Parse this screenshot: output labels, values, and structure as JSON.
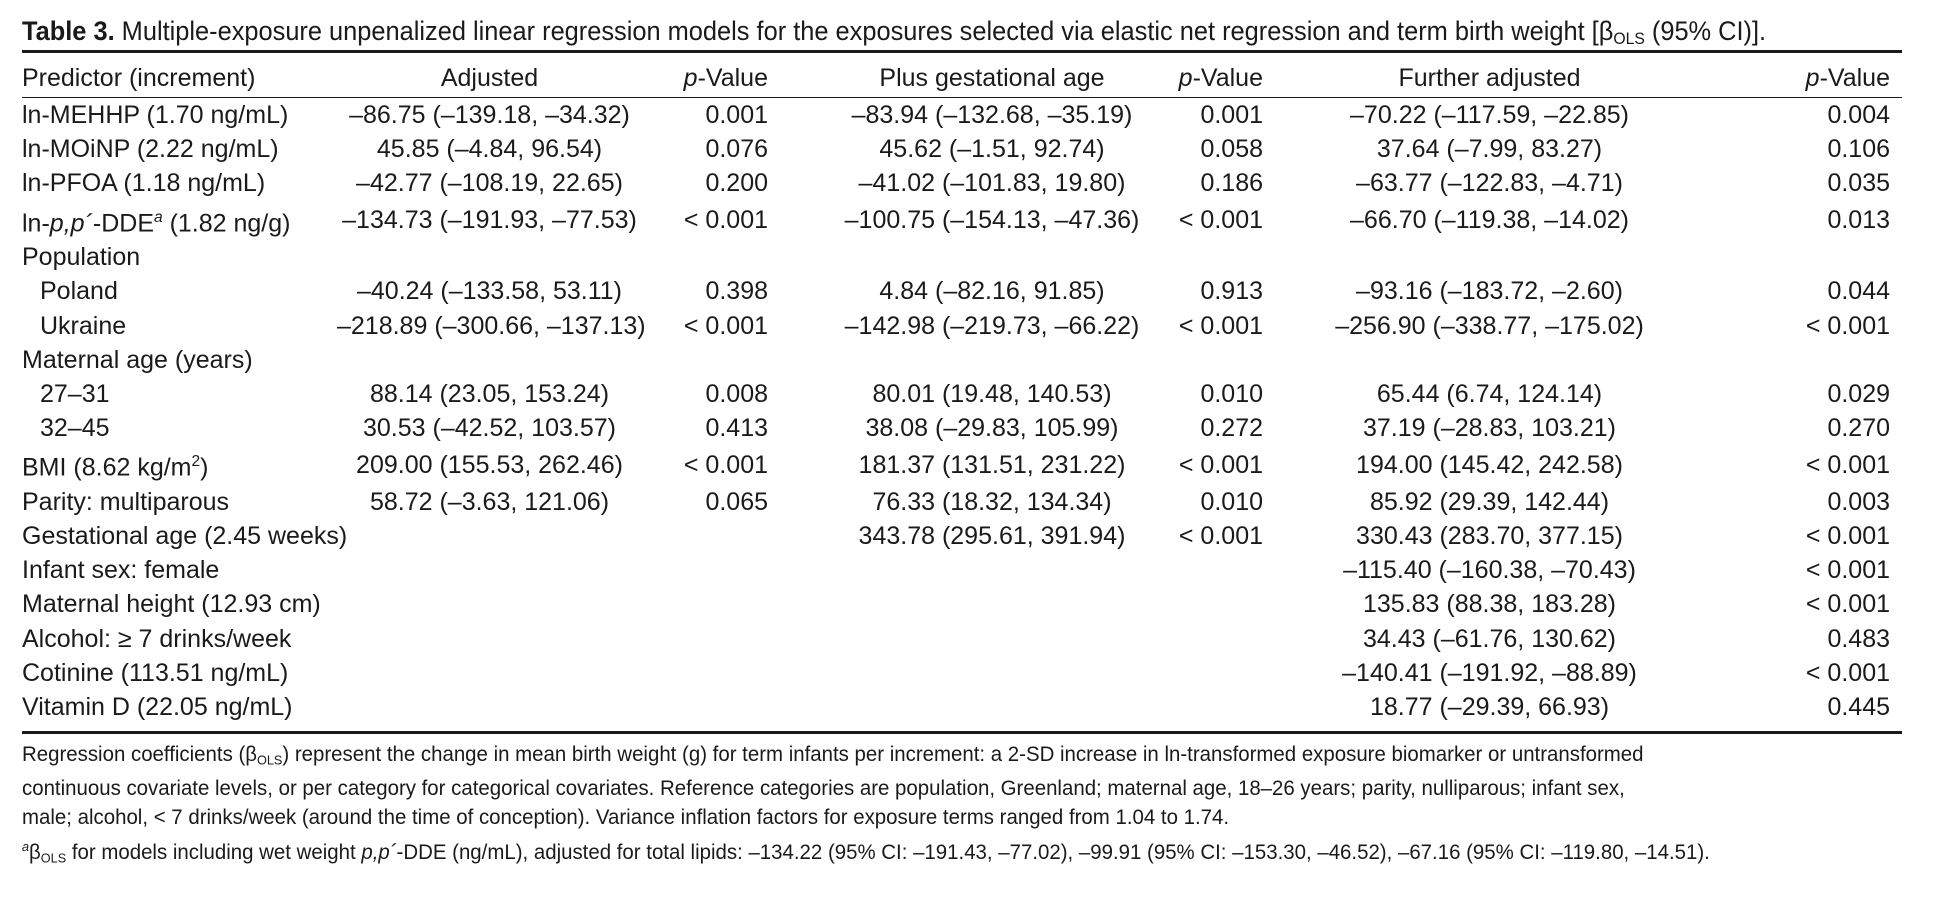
{
  "caption": {
    "label": "Table 3.",
    "text_before": " Multiple-exposure unpenalized linear regression models for the exposures selected via elastic net regression and term birth weight [",
    "beta": "β",
    "beta_sub": "OLS",
    "text_after": " (95% CI)]."
  },
  "table": {
    "headers": {
      "predictor": "Predictor (increment)",
      "adjusted": "Adjusted",
      "p1_italic": "p",
      "p_suffix": "-Value",
      "plus_ga": "Plus gestational age",
      "further": "Further adjusted"
    },
    "rows": [
      {
        "predictor": "ln-MEHHP (1.70 ng/mL)",
        "indent": false,
        "adj": "–86.75 (–139.18, –34.32)",
        "p1": "0.001",
        "ga": "–83.94 (–132.68, –35.19)",
        "p2": "0.001",
        "fa": "–70.22 (–117.59, –22.85)",
        "p3": "0.004"
      },
      {
        "predictor": "ln-MOiNP (2.22 ng/mL)",
        "indent": false,
        "adj": "45.85 (–4.84, 96.54)",
        "p1": "0.076",
        "ga": "45.62 (–1.51, 92.74)",
        "p2": "0.058",
        "fa": "37.64 (–7.99, 83.27)",
        "p3": "0.106"
      },
      {
        "predictor": "ln-PFOA (1.18 ng/mL)",
        "indent": false,
        "adj": "–42.77 (–108.19, 22.65)",
        "p1": "0.200",
        "ga": "–41.02 (–101.83, 19.80)",
        "p2": "0.186",
        "fa": "–63.77 (–122.83, –4.71)",
        "p3": "0.035"
      },
      {
        "predictor": "",
        "indent": false,
        "special": "ddt",
        "adj": "–134.73 (–191.93, –77.53)",
        "p1": "< 0.001",
        "ga": "–100.75 (–154.13, –47.36)",
        "p2": "< 0.001",
        "fa": "–66.70 (–119.38, –14.02)",
        "p3": "0.013"
      },
      {
        "predictor": "Population",
        "indent": false,
        "adj": "",
        "p1": "",
        "ga": "",
        "p2": "",
        "fa": "",
        "p3": ""
      },
      {
        "predictor": "Poland",
        "indent": true,
        "adj": "–40.24 (–133.58, 53.11)",
        "p1": "0.398",
        "ga": "4.84 (–82.16, 91.85)",
        "p2": "0.913",
        "fa": "–93.16 (–183.72, –2.60)",
        "p3": "0.044"
      },
      {
        "predictor": "Ukraine",
        "indent": true,
        "adj": "–218.89 (–300.66, –137.13)",
        "p1": "< 0.001",
        "ga": "–142.98 (–219.73, –66.22)",
        "p2": "< 0.001",
        "fa": "–256.90 (–338.77, –175.02)",
        "p3": "< 0.001"
      },
      {
        "predictor": "Maternal age (years)",
        "indent": false,
        "adj": "",
        "p1": "",
        "ga": "",
        "p2": "",
        "fa": "",
        "p3": ""
      },
      {
        "predictor": "27–31",
        "indent": true,
        "adj": "88.14 (23.05, 153.24)",
        "p1": "0.008",
        "ga": "80.01 (19.48, 140.53)",
        "p2": "0.010",
        "fa": "65.44 (6.74, 124.14)",
        "p3": "0.029"
      },
      {
        "predictor": "32–45",
        "indent": true,
        "adj": "30.53 (–42.52, 103.57)",
        "p1": "0.413",
        "ga": "38.08 (–29.83, 105.99)",
        "p2": "0.272",
        "fa": "37.19 (–28.83, 103.21)",
        "p3": "0.270"
      },
      {
        "predictor": "",
        "indent": false,
        "special": "bmi",
        "adj": "209.00 (155.53, 262.46)",
        "p1": "< 0.001",
        "ga": "181.37 (131.51, 231.22)",
        "p2": "< 0.001",
        "fa": "194.00 (145.42, 242.58)",
        "p3": "< 0.001"
      },
      {
        "predictor": "Parity: multiparous",
        "indent": false,
        "adj": "58.72 (–3.63, 121.06)",
        "p1": "0.065",
        "ga": "76.33 (18.32, 134.34)",
        "p2": "0.010",
        "fa": "85.92 (29.39, 142.44)",
        "p3": "0.003"
      },
      {
        "predictor": "Gestational age (2.45 weeks)",
        "indent": false,
        "adj": "",
        "p1": "",
        "ga": "343.78 (295.61, 391.94)",
        "p2": "< 0.001",
        "fa": "330.43 (283.70, 377.15)",
        "p3": "< 0.001"
      },
      {
        "predictor": "Infant sex: female",
        "indent": false,
        "adj": "",
        "p1": "",
        "ga": "",
        "p2": "",
        "fa": "–115.40 (–160.38, –70.43)",
        "p3": "< 0.001"
      },
      {
        "predictor": "Maternal height (12.93 cm)",
        "indent": false,
        "adj": "",
        "p1": "",
        "ga": "",
        "p2": "",
        "fa": "135.83 (88.38, 183.28)",
        "p3": "< 0.001"
      },
      {
        "predictor": "Alcohol: ≥ 7 drinks/week",
        "indent": false,
        "adj": "",
        "p1": "",
        "ga": "",
        "p2": "",
        "fa": "34.43 (–61.76, 130.62)",
        "p3": "0.483"
      },
      {
        "predictor": "Cotinine (113.51 ng/mL)",
        "indent": false,
        "adj": "",
        "p1": "",
        "ga": "",
        "p2": "",
        "fa": "–140.41 (–191.92, –88.89)",
        "p3": "< 0.001"
      },
      {
        "predictor": "Vitamin D (22.05 ng/mL)",
        "indent": false,
        "adj": "",
        "p1": "",
        "ga": "",
        "p2": "",
        "fa": "18.77 (–29.39, 66.93)",
        "p3": "0.445"
      }
    ],
    "ddt_label": {
      "prefix": "ln-",
      "italic": "p,p´",
      "middle": "-DDE",
      "sup": "a",
      "suffix": " (1.82 ng/g)"
    },
    "bmi_label": {
      "prefix": "BMI (8.62 kg/m",
      "sup": "2",
      "suffix": ")"
    }
  },
  "footnotes": {
    "fn1_a": "Regression coefficients (",
    "beta": "β",
    "beta_sub": "OLS",
    "fn1_b": ") represent the change in mean birth weight (g) for term infants per increment: a 2-SD increase in ln-transformed exposure biomarker or untransformed",
    "fn2": "continuous covariate levels, or per category for categorical covariates. Reference categories are population, Greenland; maternal age, 18–26 years; parity, nulliparous; infant sex,",
    "fn3": "male; alcohol, < 7 drinks/week (around the time of conception). Variance inflation factors for exposure terms ranged from 1.04 to 1.74.",
    "fn4_sup": "a",
    "fn4_a": " for models including wet weight ",
    "fn4_italic": "p,p´",
    "fn4_b": "-DDE (ng/mL), adjusted for total lipids: –134.22 (95% CI: –191.43, –77.02), –99.91 (95% CI: –153.30, –46.52), –67.16 (95% CI: –119.80, –14.51)."
  }
}
